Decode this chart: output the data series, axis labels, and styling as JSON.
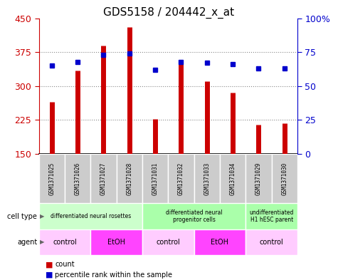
{
  "title": "GDS5158 / 204442_x_at",
  "samples": [
    "GSM1371025",
    "GSM1371026",
    "GSM1371027",
    "GSM1371028",
    "GSM1371031",
    "GSM1371032",
    "GSM1371033",
    "GSM1371034",
    "GSM1371029",
    "GSM1371030"
  ],
  "counts": [
    265,
    335,
    390,
    430,
    228,
    350,
    310,
    285,
    215,
    218
  ],
  "percentiles": [
    65,
    68,
    73,
    74,
    62,
    68,
    67,
    66,
    63,
    63
  ],
  "y_min": 150,
  "y_max": 450,
  "y_ticks": [
    150,
    225,
    300,
    375,
    450
  ],
  "right_y_ticks": [
    0,
    25,
    50,
    75,
    100
  ],
  "right_y_tick_labels": [
    "0",
    "25",
    "50",
    "75",
    "100%"
  ],
  "cell_type_groups": [
    {
      "label": "differentiated neural rosettes",
      "start": 0,
      "end": 4,
      "color": "#ccffcc"
    },
    {
      "label": "differentiated neural\nprogenitor cells",
      "start": 4,
      "end": 8,
      "color": "#aaffaa"
    },
    {
      "label": "undifferentiated\nH1 hESC parent",
      "start": 8,
      "end": 10,
      "color": "#aaffaa"
    }
  ],
  "agent_groups": [
    {
      "label": "control",
      "start": 0,
      "end": 2,
      "color": "#ffccff"
    },
    {
      "label": "EtOH",
      "start": 2,
      "end": 4,
      "color": "#ff44ff"
    },
    {
      "label": "control",
      "start": 4,
      "end": 6,
      "color": "#ffccff"
    },
    {
      "label": "EtOH",
      "start": 6,
      "end": 8,
      "color": "#ff44ff"
    },
    {
      "label": "control",
      "start": 8,
      "end": 10,
      "color": "#ffccff"
    }
  ],
  "bar_color": "#cc0000",
  "dot_color": "#0000cc",
  "grid_color": "#888888",
  "left_tick_color": "#cc0000",
  "right_tick_color": "#0000cc",
  "sample_bg_color": "#cccccc",
  "right_y_tick_labels_full": [
    "0",
    "25",
    "50",
    "75",
    "100%"
  ]
}
